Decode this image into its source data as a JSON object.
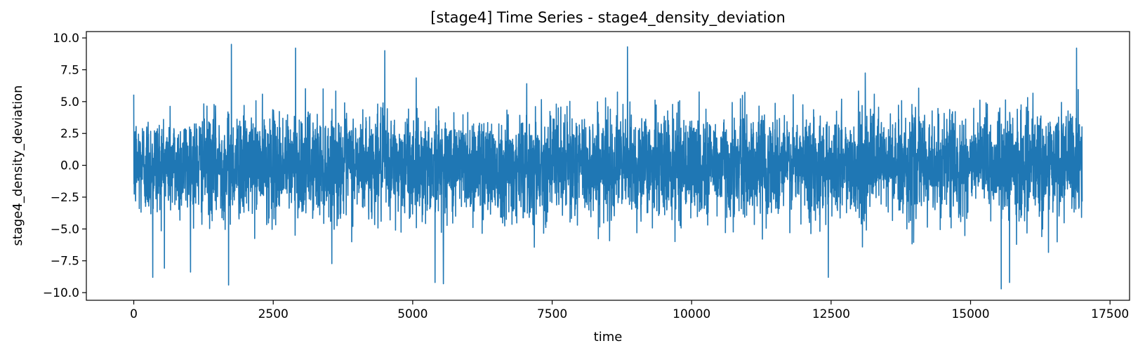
{
  "chart_data": {
    "type": "line",
    "title": "[stage4] Time Series - stage4_density_deviation",
    "xlabel": "time",
    "ylabel": "stage4_density_deviation",
    "xlim": [
      -850,
      17850
    ],
    "ylim": [
      -10.6,
      10.5
    ],
    "x_ticks": [
      0,
      2500,
      5000,
      7500,
      10000,
      12500,
      15000,
      17500
    ],
    "x_tick_labels": [
      "0",
      "2500",
      "5000",
      "7500",
      "10000",
      "12500",
      "15000",
      "17500"
    ],
    "y_ticks": [
      -10.0,
      -7.5,
      -5.0,
      -2.5,
      0.0,
      2.5,
      5.0,
      7.5,
      10.0
    ],
    "y_tick_labels": [
      "−10.0",
      "−7.5",
      "−5.0",
      "−2.5",
      "0.0",
      "2.5",
      "5.0",
      "7.5",
      "10.0"
    ],
    "grid": false,
    "legend": "none",
    "series": [
      {
        "color": "#1f77b4",
        "x_start": 0,
        "x_end": 17000,
        "mean": 0.0,
        "std": 2.0,
        "min": -9.7,
        "max": 9.5,
        "approx_points": 17000,
        "peaks": [
          {
            "x": 1750,
            "y": 9.5
          },
          {
            "x": 2900,
            "y": 9.2
          },
          {
            "x": 4500,
            "y": 9.0
          },
          {
            "x": 8850,
            "y": 9.3
          },
          {
            "x": 16900,
            "y": 9.2
          },
          {
            "x": 340,
            "y": -8.8
          },
          {
            "x": 1700,
            "y": -9.4
          },
          {
            "x": 5400,
            "y": -9.2
          },
          {
            "x": 5550,
            "y": -9.3
          },
          {
            "x": 12450,
            "y": -8.8
          },
          {
            "x": 15550,
            "y": -9.7
          },
          {
            "x": 15700,
            "y": -9.2
          }
        ]
      }
    ]
  }
}
